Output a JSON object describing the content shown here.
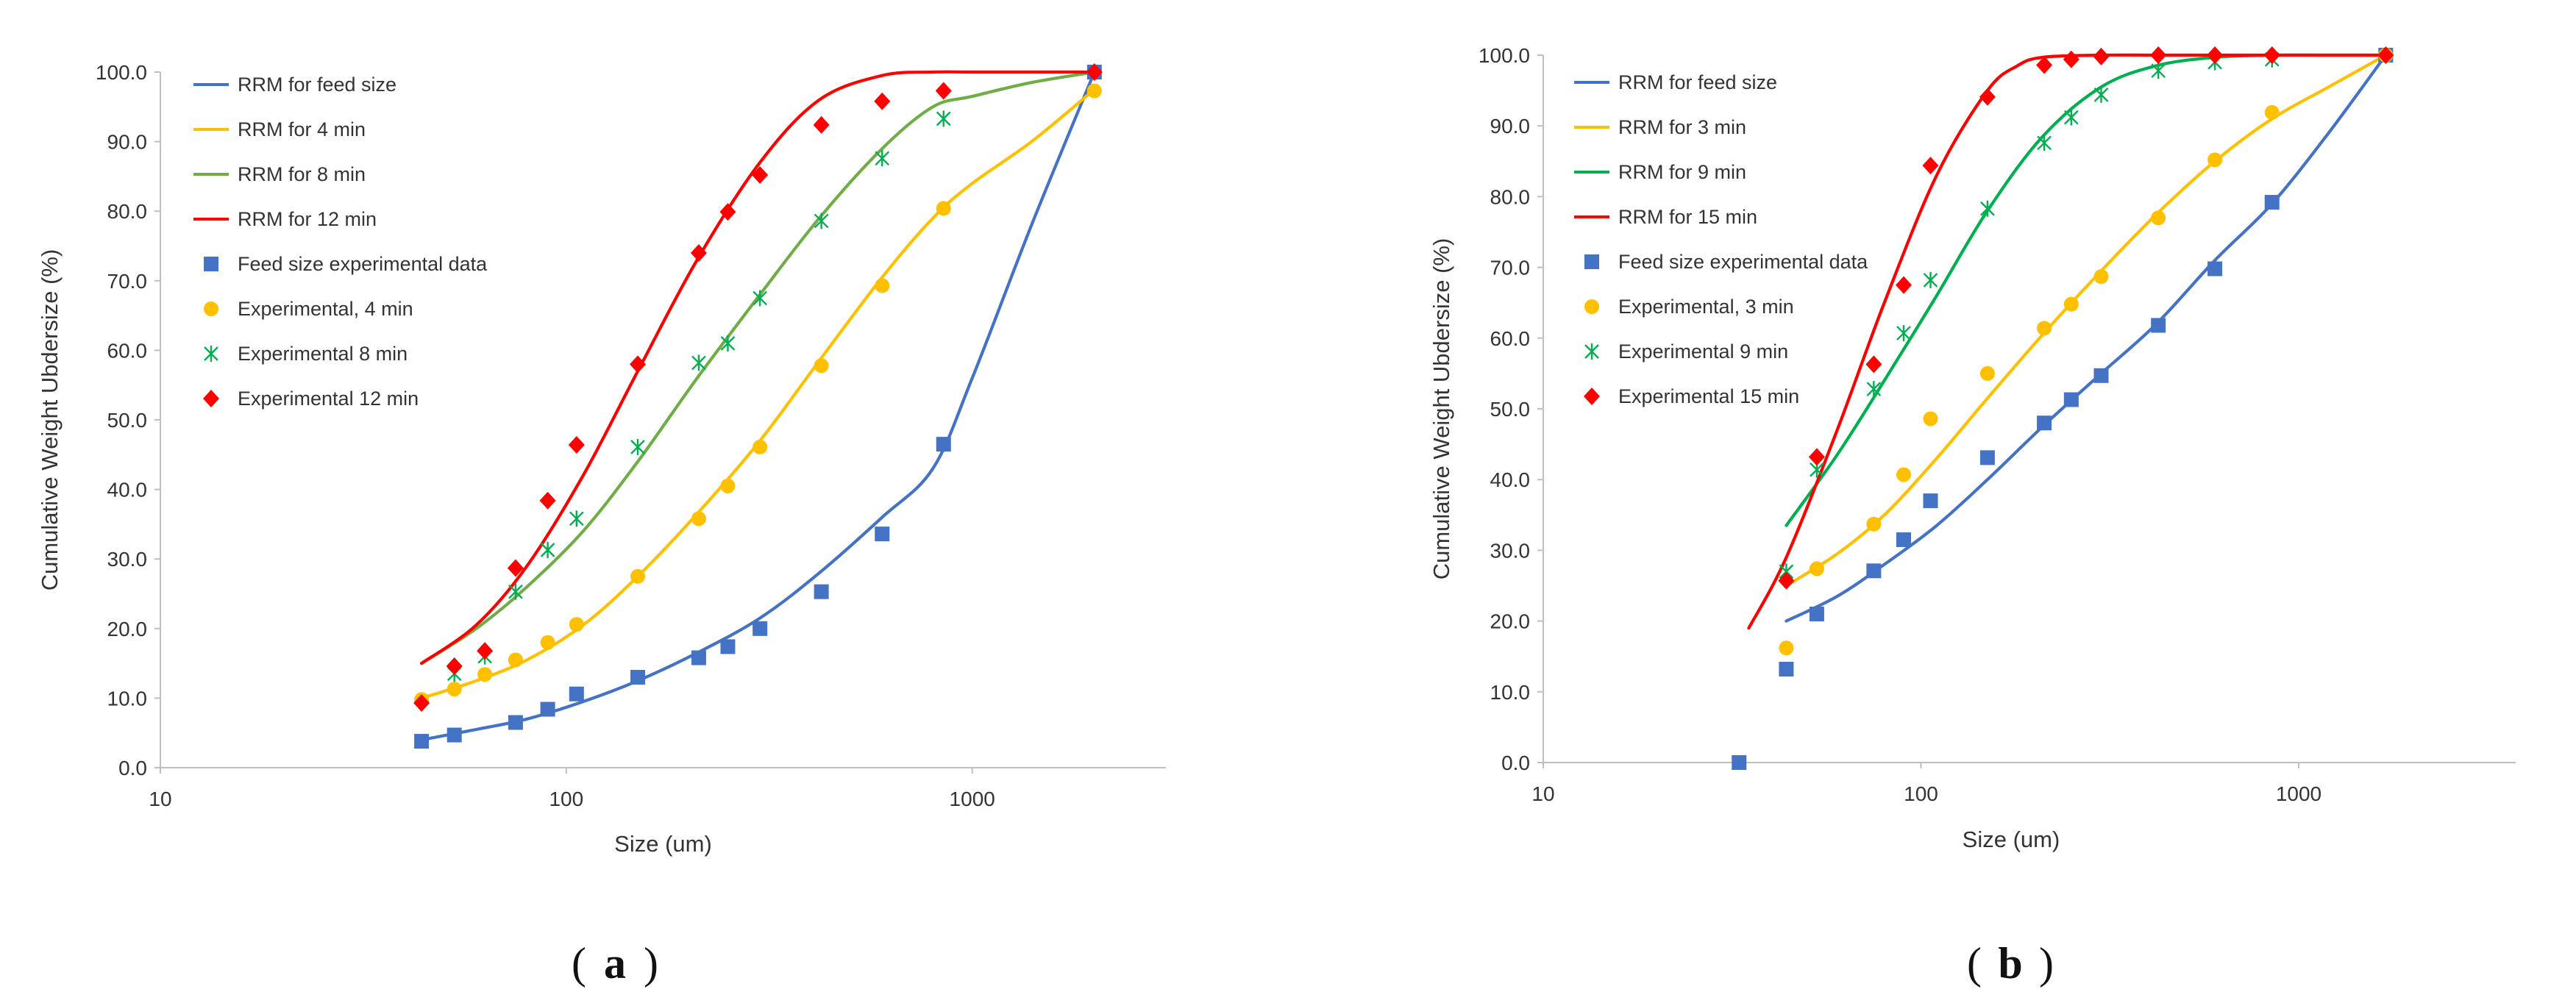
{
  "colors": {
    "blue": "#4472C4",
    "yellow": "#FFC000",
    "green_a": "#70AD47",
    "green_b": "#00B050",
    "red": "#FF0000",
    "axis": "#BFBFBF"
  },
  "chart_data": [
    {
      "type": "scatter",
      "panel_label": "a",
      "title": "",
      "xlabel": "Size (um)",
      "ylabel": "Cumulative Weight Ubdersize (%)",
      "xscale": "log",
      "xlim": [
        10,
        3000
      ],
      "ylim": [
        0,
        100
      ],
      "x_ticks": [
        10,
        100,
        1000
      ],
      "x_tick_labels": [
        "10",
        "100",
        "1000"
      ],
      "y_ticks": [
        0,
        10,
        20,
        30,
        40,
        50,
        60,
        70,
        80,
        90,
        100
      ],
      "y_tick_labels": [
        "0.0",
        "10.0",
        "20.0",
        "30.0",
        "40.0",
        "50.0",
        "60.0",
        "70.0",
        "80.0",
        "90.0",
        "100.0"
      ],
      "grid": false,
      "legend_position": "top-left",
      "series": [
        {
          "name": "RRM for feed size",
          "kind": "line",
          "color": "#4472C4",
          "x": [
            44,
            60,
            80,
            110,
            150,
            210,
            300,
            420,
            600,
            800,
            1000,
            1400,
            2000
          ],
          "y": [
            4,
            5.5,
            7,
            9.5,
            12.5,
            16.5,
            21.5,
            28,
            36,
            43,
            56,
            78,
            100
          ]
        },
        {
          "name": "RRM for 4 min",
          "kind": "line",
          "color": "#FFC000",
          "x": [
            44,
            60,
            80,
            110,
            150,
            210,
            300,
            420,
            600,
            800,
            1000,
            1400,
            2000
          ],
          "y": [
            10,
            12.5,
            15.5,
            20.5,
            27.5,
            36.5,
            47,
            58.5,
            70.5,
            79,
            84,
            90,
            97.5
          ]
        },
        {
          "name": "RRM for 8 min",
          "kind": "line",
          "color": "#70AD47",
          "x": [
            44,
            60,
            80,
            110,
            150,
            210,
            300,
            420,
            600,
            800,
            1000,
            1400,
            2000
          ],
          "y": [
            15,
            20,
            26,
            34,
            44,
            56,
            68,
            79,
            89,
            95,
            96.5,
            98.5,
            100
          ]
        },
        {
          "name": "RRM for 12 min",
          "kind": "line",
          "color": "#FF0000",
          "x": [
            44,
            60,
            80,
            110,
            150,
            210,
            300,
            420,
            600,
            800,
            1000,
            1400,
            2000
          ],
          "y": [
            15,
            20.5,
            29,
            42,
            57,
            73,
            87,
            96,
            99.5,
            100,
            100,
            100,
            100
          ]
        },
        {
          "name": "Feed size experimental data",
          "kind": "scatter",
          "marker": "square",
          "color": "#4472C4",
          "x": [
            44,
            53,
            75,
            90,
            106,
            150,
            212,
            250,
            300,
            425,
            600,
            850,
            2000
          ],
          "y": [
            3.8,
            4.7,
            6.5,
            8.4,
            10.6,
            13,
            15.8,
            17.4,
            20,
            25.3,
            33.6,
            46.5,
            100
          ]
        },
        {
          "name": "Experimental, 4 min",
          "kind": "scatter",
          "marker": "circle",
          "color": "#FFC000",
          "x": [
            44,
            53,
            63,
            75,
            90,
            106,
            150,
            212,
            250,
            300,
            425,
            600,
            850,
            2000
          ],
          "y": [
            9.8,
            11.3,
            13.4,
            15.5,
            18,
            20.6,
            27.5,
            35.8,
            40.5,
            46.1,
            57.8,
            69.3,
            80.4,
            97.3
          ]
        },
        {
          "name": "Experimental 8 min",
          "kind": "scatter",
          "marker": "star",
          "color": "#00B050",
          "x": [
            53,
            63,
            75,
            90,
            106,
            150,
            212,
            250,
            300,
            425,
            600,
            850
          ],
          "y": [
            13.5,
            16,
            25.3,
            31.3,
            35.8,
            46.1,
            58.2,
            61,
            67.5,
            78.6,
            87.6,
            93.3
          ]
        },
        {
          "name": "Experimental 12 min",
          "kind": "scatter",
          "marker": "diamond",
          "color": "#FF0000",
          "x": [
            44,
            53,
            63,
            75,
            90,
            106,
            150,
            212,
            250,
            300,
            425,
            600,
            850,
            2000
          ],
          "y": [
            9.3,
            14.6,
            16.8,
            28.7,
            38.4,
            46.4,
            58,
            74,
            79.9,
            85.2,
            92.4,
            95.8,
            97.3,
            100
          ]
        }
      ]
    },
    {
      "type": "scatter",
      "panel_label": "b",
      "title": "",
      "xlabel": "Size (um)",
      "ylabel": "Cumulative Weight Ubdersize (%)",
      "xscale": "log",
      "xlim": [
        10,
        3000
      ],
      "ylim": [
        0,
        100
      ],
      "x_ticks": [
        10,
        100,
        1000
      ],
      "x_tick_labels": [
        "10",
        "100",
        "1000"
      ],
      "y_ticks": [
        0,
        10,
        20,
        30,
        40,
        50,
        60,
        70,
        80,
        90,
        100
      ],
      "y_tick_labels": [
        "0.0",
        "10.0",
        "20.0",
        "30.0",
        "40.0",
        "50.0",
        "60.0",
        "70.0",
        "80.0",
        "90.0",
        "100.0"
      ],
      "grid": false,
      "legend_position": "top-left",
      "series": [
        {
          "name": "RRM for feed size",
          "kind": "line",
          "color": "#4472C4",
          "x": [
            44,
            60,
            80,
            110,
            150,
            210,
            300,
            420,
            600,
            850,
            1200,
            1700
          ],
          "y": [
            20,
            23.5,
            28,
            33.5,
            40,
            47.5,
            55,
            62,
            71,
            79,
            89,
            100
          ]
        },
        {
          "name": "RRM for 3 min",
          "kind": "line",
          "color": "#FFC000",
          "x": [
            44,
            60,
            80,
            110,
            150,
            210,
            300,
            420,
            600,
            850,
            1200,
            1700
          ],
          "y": [
            25,
            29.5,
            35,
            43,
            51.5,
            60.5,
            69.5,
            77.5,
            85,
            91,
            95.5,
            100
          ]
        },
        {
          "name": "RRM for 9 min",
          "kind": "line",
          "color": "#00B050",
          "x": [
            44,
            60,
            80,
            110,
            150,
            210,
            300,
            420,
            600,
            850,
            1200,
            1700
          ],
          "y": [
            33.5,
            43.5,
            54,
            66,
            78,
            88.5,
            95.5,
            98.5,
            99.7,
            100,
            100,
            100
          ]
        },
        {
          "name": "RRM for 15 min",
          "kind": "line",
          "color": "#FF0000",
          "x": [
            35,
            44,
            60,
            80,
            110,
            150,
            180,
            210,
            300,
            420,
            600,
            850,
            1200,
            1700
          ],
          "y": [
            19,
            29,
            47,
            65,
            83,
            95,
            98.5,
            99.7,
            100,
            100,
            100,
            100,
            100,
            100
          ]
        },
        {
          "name": "Feed size experimental data",
          "kind": "scatter",
          "marker": "square",
          "color": "#4472C4",
          "x": [
            33,
            44,
            53,
            75,
            90,
            106,
            150,
            212,
            250,
            300,
            425,
            600,
            850,
            1700
          ],
          "y": [
            0,
            13.2,
            21,
            27.1,
            31.5,
            37,
            43.1,
            48,
            51.3,
            54.7,
            61.8,
            69.8,
            79.2,
            100
          ]
        },
        {
          "name": "Experimental, 3 min",
          "kind": "scatter",
          "marker": "circle",
          "color": "#FFC000",
          "x": [
            44,
            53,
            75,
            90,
            106,
            150,
            212,
            250,
            300,
            425,
            600,
            850,
            1700
          ],
          "y": [
            16.2,
            27.4,
            33.7,
            40.7,
            48.6,
            55,
            61.4,
            64.8,
            68.7,
            77,
            85.2,
            91.9,
            100
          ]
        },
        {
          "name": "Experimental 9 min",
          "kind": "scatter",
          "marker": "star",
          "color": "#00B050",
          "x": [
            44,
            53,
            75,
            90,
            106,
            150,
            212,
            250,
            300,
            425,
            600,
            850
          ],
          "y": [
            27,
            41.4,
            52.8,
            60.7,
            68.2,
            78.3,
            87.6,
            91.2,
            94.4,
            97.8,
            99,
            99.4
          ]
        },
        {
          "name": "Experimental 15 min",
          "kind": "scatter",
          "marker": "diamond",
          "color": "#FF0000",
          "x": [
            44,
            53,
            75,
            90,
            106,
            150,
            212,
            250,
            300,
            425,
            600,
            850,
            1700
          ],
          "y": [
            25.7,
            43.2,
            56.3,
            67.5,
            84.4,
            94.1,
            98.6,
            99.4,
            99.8,
            100,
            100,
            100,
            100
          ]
        }
      ]
    }
  ]
}
